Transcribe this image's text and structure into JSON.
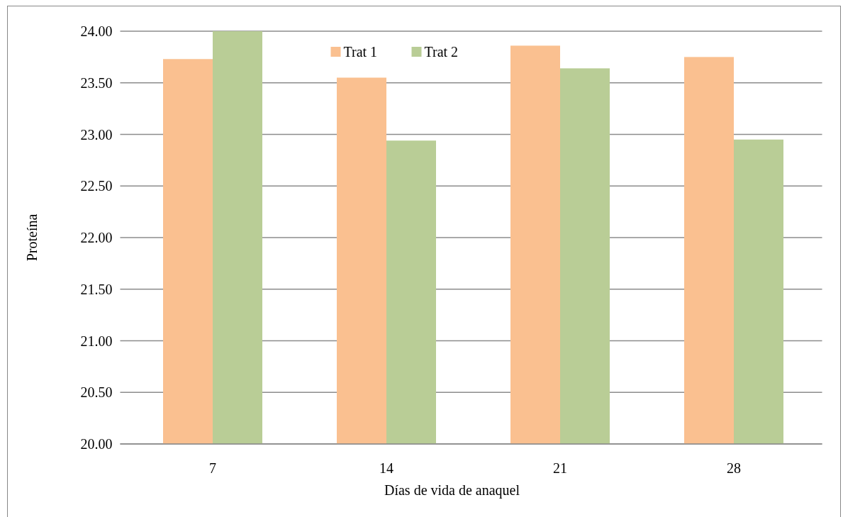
{
  "chart_data": {
    "type": "bar",
    "xlabel": "Días de vida de anaquel",
    "ylabel": "Proteína",
    "categories": [
      "7",
      "14",
      "21",
      "28"
    ],
    "series": [
      {
        "name": "Trat 1",
        "color": "#fac090",
        "values": [
          23.73,
          23.55,
          23.86,
          23.75
        ]
      },
      {
        "name": "Trat 2",
        "color": "#b9cd96",
        "values": [
          24.0,
          22.94,
          23.64,
          22.95
        ]
      }
    ],
    "ylim": [
      20,
      24
    ],
    "yticks": [
      {
        "value": 20,
        "label": "20.00"
      },
      {
        "value": 20.5,
        "label": "20.50"
      },
      {
        "value": 21,
        "label": "21.00"
      },
      {
        "value": 21.5,
        "label": "21.50"
      },
      {
        "value": 22,
        "label": "22.00"
      },
      {
        "value": 22.5,
        "label": "22.50"
      },
      {
        "value": 23,
        "label": "23.00"
      },
      {
        "value": 23.5,
        "label": "23.50"
      },
      {
        "value": 24,
        "label": "24.00"
      }
    ],
    "grid": "y",
    "legend": "top"
  }
}
